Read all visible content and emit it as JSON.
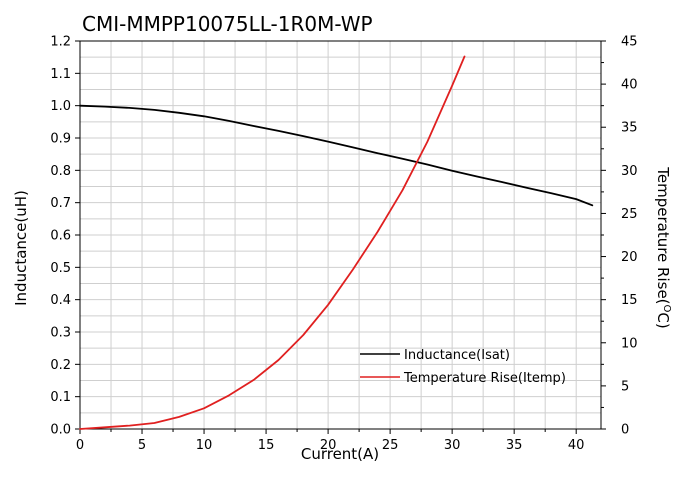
{
  "chart_data": {
    "type": "line",
    "title": "CMI-MMPP10075LL-1R0M-WP",
    "xlabel": "Current(A)",
    "ylabel_left": "Inductance(uH)",
    "ylabel_right": "Temperature Rise(",
    "ylabel_right_sup": "O",
    "ylabel_right_unit": "C)",
    "xlim": [
      0,
      42
    ],
    "ylim_left": [
      0,
      1.2
    ],
    "ylim_right": [
      0,
      45
    ],
    "x_ticks": [
      "0",
      "5",
      "10",
      "15",
      "20",
      "25",
      "30",
      "35",
      "40"
    ],
    "y_left_ticks": [
      "0.0",
      "0.1",
      "0.2",
      "0.3",
      "0.4",
      "0.5",
      "0.6",
      "0.7",
      "0.8",
      "0.9",
      "1.0",
      "1.1",
      "1.2"
    ],
    "y_right_ticks": [
      "0",
      "5",
      "10",
      "15",
      "20",
      "25",
      "30",
      "35",
      "40",
      "45"
    ],
    "grid": true,
    "legend_position": "lower-right",
    "series": [
      {
        "name": "Inductance(Isat)",
        "axis": "left",
        "color": "#000000",
        "x": [
          0,
          2,
          4,
          6,
          8,
          10,
          12,
          14,
          16,
          18,
          20,
          22,
          24,
          26,
          28,
          30,
          32,
          34,
          36,
          38,
          40,
          41.3
        ],
        "y": [
          1.0,
          0.997,
          0.993,
          0.987,
          0.978,
          0.967,
          0.953,
          0.937,
          0.922,
          0.906,
          0.889,
          0.871,
          0.853,
          0.836,
          0.818,
          0.799,
          0.781,
          0.764,
          0.746,
          0.729,
          0.711,
          0.692
        ]
      },
      {
        "name": "Temperature Rise(Itemp)",
        "axis": "right",
        "color": "#e02020",
        "x": [
          0,
          2,
          4,
          6,
          8,
          10,
          12,
          14,
          16,
          18,
          20,
          22,
          24,
          26,
          28,
          30,
          31
        ],
        "y": [
          0,
          0.2,
          0.4,
          0.7,
          1.4,
          2.4,
          3.9,
          5.7,
          8.0,
          10.9,
          14.4,
          18.5,
          22.9,
          27.7,
          33.3,
          39.8,
          43.2
        ]
      }
    ]
  }
}
